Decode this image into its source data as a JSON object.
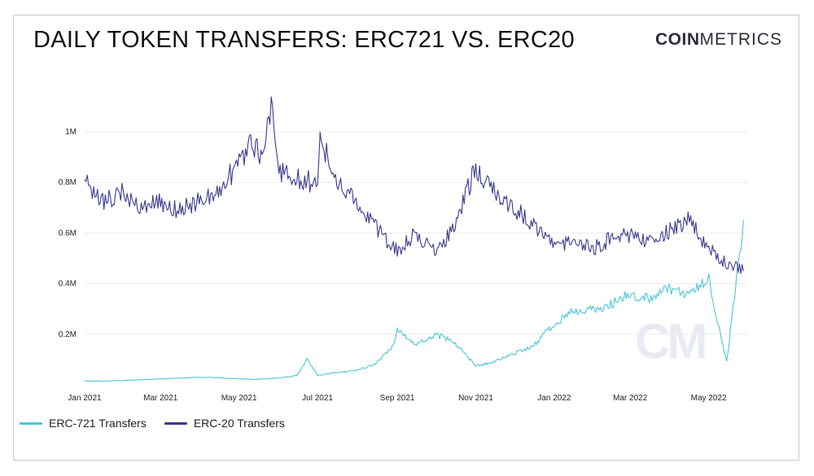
{
  "header": {
    "title": "DAILY TOKEN TRANSFERS: ERC721 VS. ERC20",
    "brand_bold": "COIN",
    "brand_light": "METRICS"
  },
  "watermark": "CM",
  "colors": {
    "erc721": "#4bc6d8",
    "erc20": "#3b3a8f",
    "grid": "#ececec"
  },
  "chart_data": {
    "type": "line",
    "x_ticks": [
      "Jan 2021",
      "Mar 2021",
      "May 2021",
      "Jul 2021",
      "Sep 2021",
      "Nov 2021",
      "Jan 2022",
      "Mar 2022",
      "May 2022"
    ],
    "y_ticks": [
      "0.2M",
      "0.4M",
      "0.6M",
      "0.8M",
      "1M"
    ],
    "ylim": [
      0,
      1200000
    ],
    "x_range": [
      "2021-01-01",
      "2022-05-31"
    ],
    "legend_position": "bottom-left",
    "grid": true,
    "series": [
      {
        "name": "ERC-721 Transfers",
        "x": [
          "2021-01-01",
          "2021-01-15",
          "2021-02-01",
          "2021-02-15",
          "2021-03-01",
          "2021-03-15",
          "2021-04-01",
          "2021-04-15",
          "2021-05-01",
          "2021-05-15",
          "2021-06-01",
          "2021-06-15",
          "2021-06-23",
          "2021-07-01",
          "2021-07-15",
          "2021-08-01",
          "2021-08-15",
          "2021-08-28",
          "2021-09-01",
          "2021-09-15",
          "2021-10-01",
          "2021-10-15",
          "2021-11-01",
          "2021-11-15",
          "2021-12-01",
          "2021-12-15",
          "2022-01-01",
          "2022-01-15",
          "2022-02-01",
          "2022-02-15",
          "2022-03-01",
          "2022-03-15",
          "2022-04-01",
          "2022-04-15",
          "2022-05-01",
          "2022-05-10",
          "2022-05-15",
          "2022-05-22",
          "2022-05-28"
        ],
        "values": [
          15000,
          15000,
          18000,
          20000,
          24000,
          26000,
          30000,
          28000,
          24000,
          22000,
          28000,
          36000,
          100000,
          38000,
          48000,
          58000,
          82000,
          150000,
          220000,
          160000,
          200000,
          170000,
          75000,
          90000,
          125000,
          150000,
          240000,
          290000,
          300000,
          320000,
          360000,
          340000,
          380000,
          360000,
          420000,
          200000,
          90000,
          390000,
          650000
        ]
      },
      {
        "name": "ERC-20 Transfers",
        "x": [
          "2021-01-01",
          "2021-01-15",
          "2021-02-01",
          "2021-02-15",
          "2021-03-01",
          "2021-03-15",
          "2021-04-01",
          "2021-04-15",
          "2021-05-01",
          "2021-05-10",
          "2021-05-20",
          "2021-05-27",
          "2021-06-01",
          "2021-06-15",
          "2021-07-01",
          "2021-07-03",
          "2021-07-15",
          "2021-08-01",
          "2021-08-15",
          "2021-09-01",
          "2021-09-15",
          "2021-10-01",
          "2021-10-15",
          "2021-11-01",
          "2021-11-15",
          "2021-12-01",
          "2021-12-15",
          "2022-01-01",
          "2022-01-15",
          "2022-02-01",
          "2022-02-15",
          "2022-03-01",
          "2022-03-15",
          "2022-04-01",
          "2022-04-15",
          "2022-05-01",
          "2022-05-15",
          "2022-05-28"
        ],
        "values": [
          800000,
          730000,
          760000,
          700000,
          720000,
          690000,
          730000,
          760000,
          880000,
          960000,
          900000,
          1140000,
          840000,
          810000,
          800000,
          980000,
          820000,
          720000,
          620000,
          530000,
          600000,
          520000,
          620000,
          860000,
          760000,
          700000,
          640000,
          560000,
          560000,
          540000,
          580000,
          590000,
          560000,
          610000,
          650000,
          540000,
          480000,
          450000
        ]
      }
    ]
  }
}
